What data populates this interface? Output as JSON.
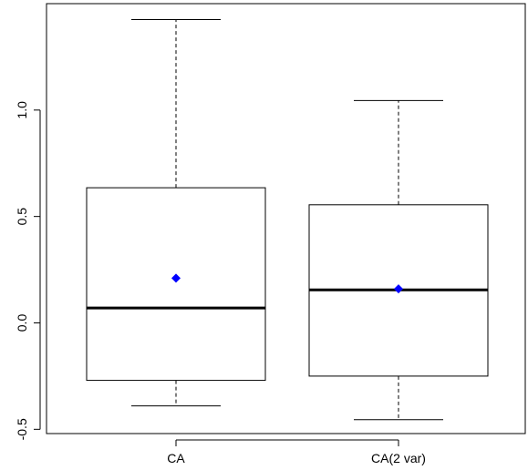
{
  "chart_data": {
    "type": "boxplot",
    "title": "",
    "xlabel": "",
    "ylabel": "",
    "ylim": [
      -0.52,
      1.5
    ],
    "y_ticks": [
      -0.5,
      0.0,
      0.5,
      1.0
    ],
    "y_tick_labels": [
      "-0.5",
      "0.0",
      "0.5",
      "1.0"
    ],
    "grid": false,
    "categories": [
      "CA",
      "CA(2 var)"
    ],
    "boxes": [
      {
        "category": "CA",
        "whisker_low": -0.39,
        "q1": -0.27,
        "median": 0.07,
        "q3": 0.635,
        "whisker_high": 1.425,
        "mean": 0.21
      },
      {
        "category": "CA(2 var)",
        "whisker_low": -0.455,
        "q1": -0.25,
        "median": 0.155,
        "q3": 0.555,
        "whisker_high": 1.045,
        "mean": 0.16
      }
    ],
    "mean_marker_color": "#0000ff",
    "mean_marker_shape": "diamond"
  }
}
